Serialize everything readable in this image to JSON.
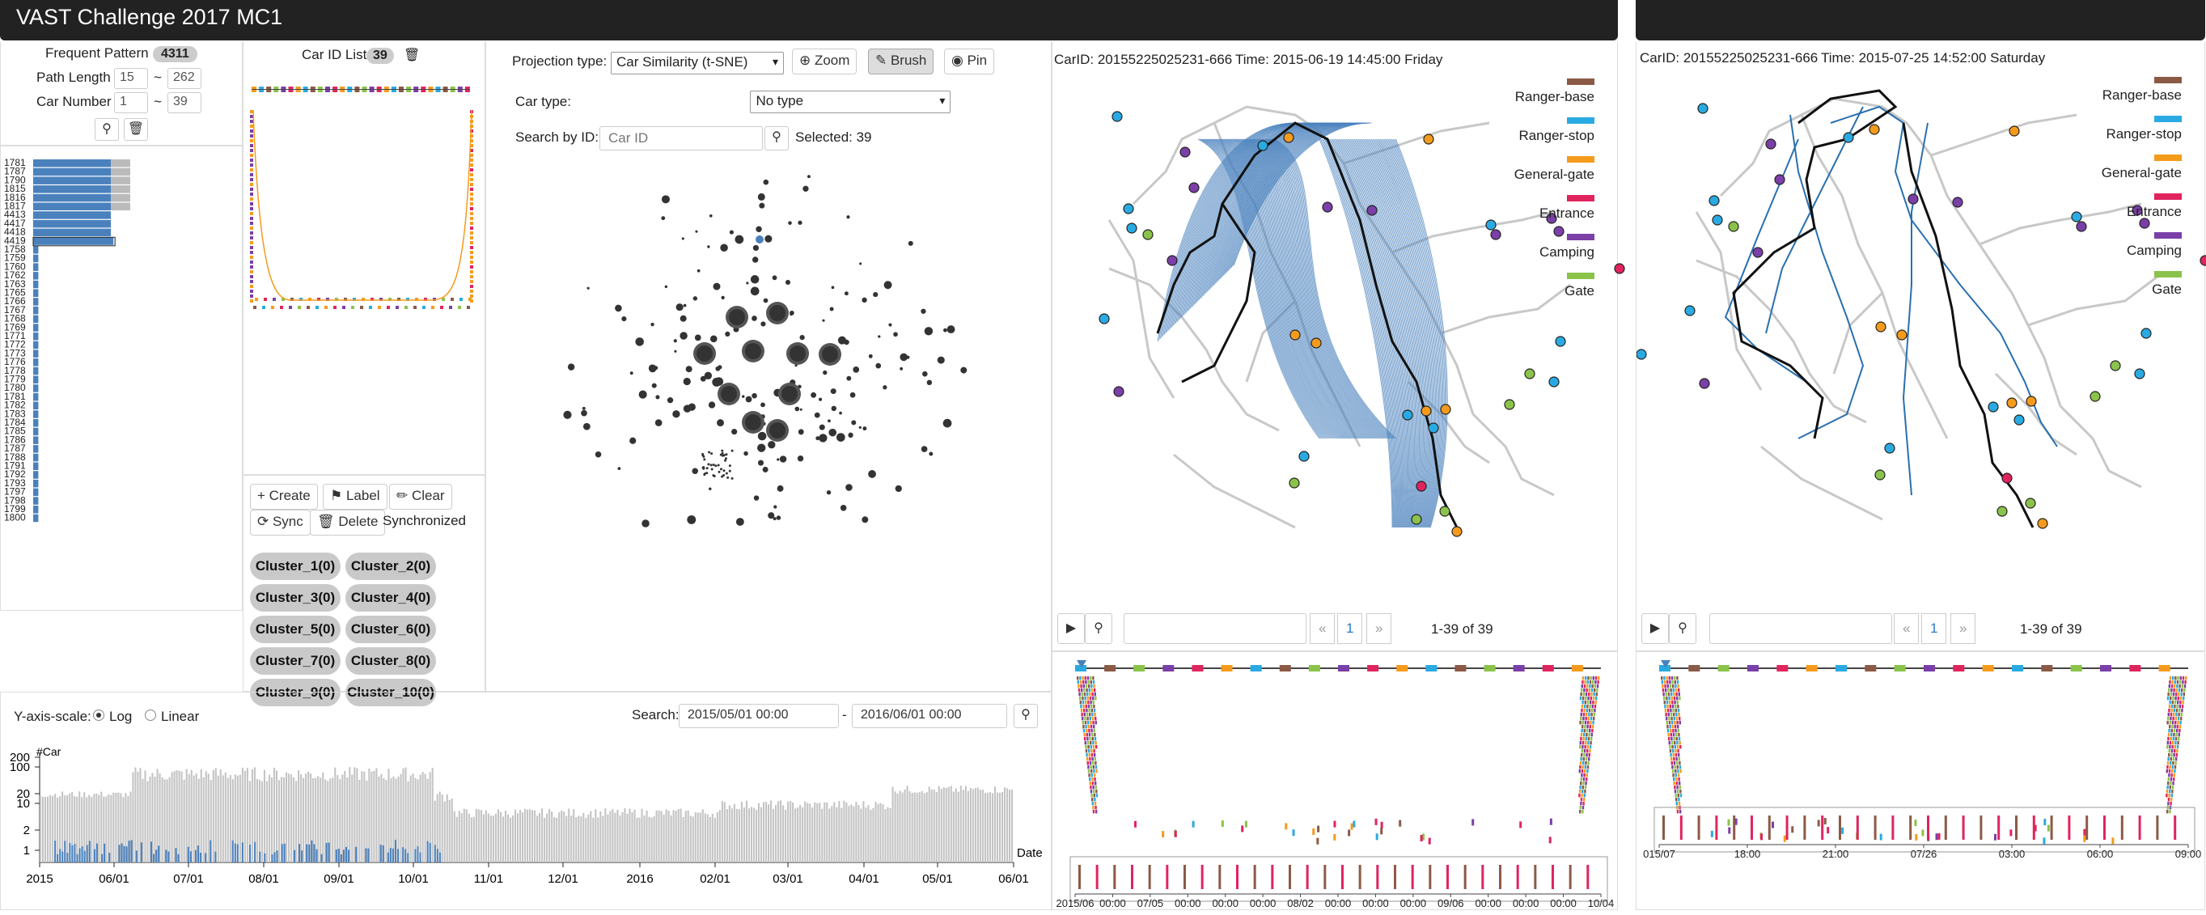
{
  "header": {
    "title": "VAST Challenge 2017 MC1"
  },
  "filter": {
    "frequent_pattern_label": "Frequent Pattern",
    "frequent_pattern_count": "4311",
    "path_length_label": "Path Length",
    "path_length_min": "15",
    "path_length_max": "262",
    "car_number_label": "Car Number",
    "car_number_min": "1",
    "car_number_max": "39",
    "range_sep": "~",
    "pattern_rows": [
      "1781",
      "1787",
      "1790",
      "1815",
      "1816",
      "1817",
      "4413",
      "4417",
      "4418",
      "4419",
      "1758",
      "1759",
      "1760",
      "1762",
      "1763",
      "1765",
      "1766",
      "1767",
      "1768",
      "1769",
      "1771",
      "1772",
      "1773",
      "1776",
      "1778",
      "1779",
      "1780",
      "1781",
      "1782",
      "1783",
      "1784",
      "1785",
      "1786",
      "1787",
      "1788",
      "1791",
      "1792",
      "1793",
      "1797",
      "1798",
      "1799",
      "1800"
    ],
    "pattern_blue": [
      0.6,
      0.6,
      0.6,
      0.6,
      0.6,
      0.6,
      0.6,
      0.6,
      0.6,
      0.62,
      0.04,
      0.04,
      0.04,
      0.04,
      0.04,
      0.04,
      0.04,
      0.04,
      0.04,
      0.04,
      0.04,
      0.04,
      0.04,
      0.04,
      0.04,
      0.04,
      0.04,
      0.04,
      0.04,
      0.04,
      0.04,
      0.04,
      0.04,
      0.04,
      0.04,
      0.04,
      0.04,
      0.04,
      0.04,
      0.04,
      0.04,
      0.04
    ],
    "pattern_gray": [
      0.15,
      0.15,
      0.15,
      0.15,
      0.15,
      0.15,
      0,
      0,
      0,
      0,
      0,
      0,
      0,
      0,
      0,
      0,
      0,
      0,
      0,
      0,
      0,
      0,
      0,
      0,
      0,
      0,
      0,
      0,
      0,
      0,
      0,
      0,
      0,
      0,
      0,
      0,
      0,
      0,
      0,
      0,
      0,
      0
    ]
  },
  "car_list": {
    "label": "Car ID List",
    "count": "39"
  },
  "cluster_panel": {
    "create": "Create",
    "label": "Label",
    "clear": "Clear",
    "sync": "Sync",
    "delete": "Delete",
    "status": "Synchronized",
    "clusters": [
      "Cluster_1(0)",
      "Cluster_2(0)",
      "Cluster_3(0)",
      "Cluster_4(0)",
      "Cluster_5(0)",
      "Cluster_6(0)",
      "Cluster_7(0)",
      "Cluster_8(0)",
      "Cluster_9(0)",
      "Cluster_10(0)"
    ]
  },
  "projection": {
    "type_label": "Projection type:",
    "type_value": "Car Similarity (t-SNE)",
    "zoom": "Zoom",
    "brush": "Brush",
    "pin": "Pin",
    "car_type_label": "Car type:",
    "car_type_value": "No type",
    "search_label": "Search by ID:",
    "search_placeholder": "Car ID",
    "selected_text": "Selected: 39"
  },
  "timeline": {
    "y_scale_label": "Y-axis-scale:",
    "log": "Log",
    "linear": "Linear",
    "search_label": "Search:",
    "start": "2015/05/01 00:00",
    "end": "2016/06/01 00:00",
    "range_sep": "-",
    "y_title": "#Car",
    "x_title": "Date",
    "y_ticks": [
      "200",
      "100",
      "20",
      "10",
      "2",
      "1"
    ],
    "x_ticks": [
      "2015",
      "06/01",
      "07/01",
      "08/01",
      "09/01",
      "10/01",
      "11/01",
      "12/01",
      "2016",
      "02/01",
      "03/01",
      "04/01",
      "05/01",
      "06/01"
    ]
  },
  "map1": {
    "car_label": "CarID: 20155225025231-666",
    "time_label": "Time: 2015-06-19 14:45:00 Friday",
    "pager_page": "1",
    "pager_prev": "«",
    "pager_next": "»",
    "pager_count": "1-39 of 39",
    "axis_ticks": [
      "2015/06",
      "00:00",
      "07/05",
      "00:00",
      "00:00",
      "00:00",
      "08/02",
      "00:00",
      "00:00",
      "00:00",
      "09/06",
      "00:00",
      "00:00",
      "00:00",
      "10/04"
    ]
  },
  "map2": {
    "car_label": "CarID: 20155225025231-666",
    "time_label": "Time: 2015-07-25 14:52:00 Saturday",
    "pager_page": "1",
    "pager_prev": "«",
    "pager_next": "»",
    "pager_count": "1-39 of 39",
    "axis_ticks": [
      "015/07",
      "18:00",
      "21:00",
      "07/26",
      "03:00",
      "06:00",
      "09:00"
    ]
  },
  "legend": [
    {
      "name": "Ranger-base",
      "color": "#8b5a46"
    },
    {
      "name": "Ranger-stop",
      "color": "#2aaae2"
    },
    {
      "name": "General-gate",
      "color": "#f59b1c"
    },
    {
      "name": "Entrance",
      "color": "#e0245e"
    },
    {
      "name": "Camping",
      "color": "#7b3fa8"
    },
    {
      "name": "Gate",
      "color": "#8bc34a"
    }
  ],
  "colors": {
    "accent": "#4a81bd",
    "gray_bar": "#bbbbbb",
    "dark": "#222222"
  }
}
